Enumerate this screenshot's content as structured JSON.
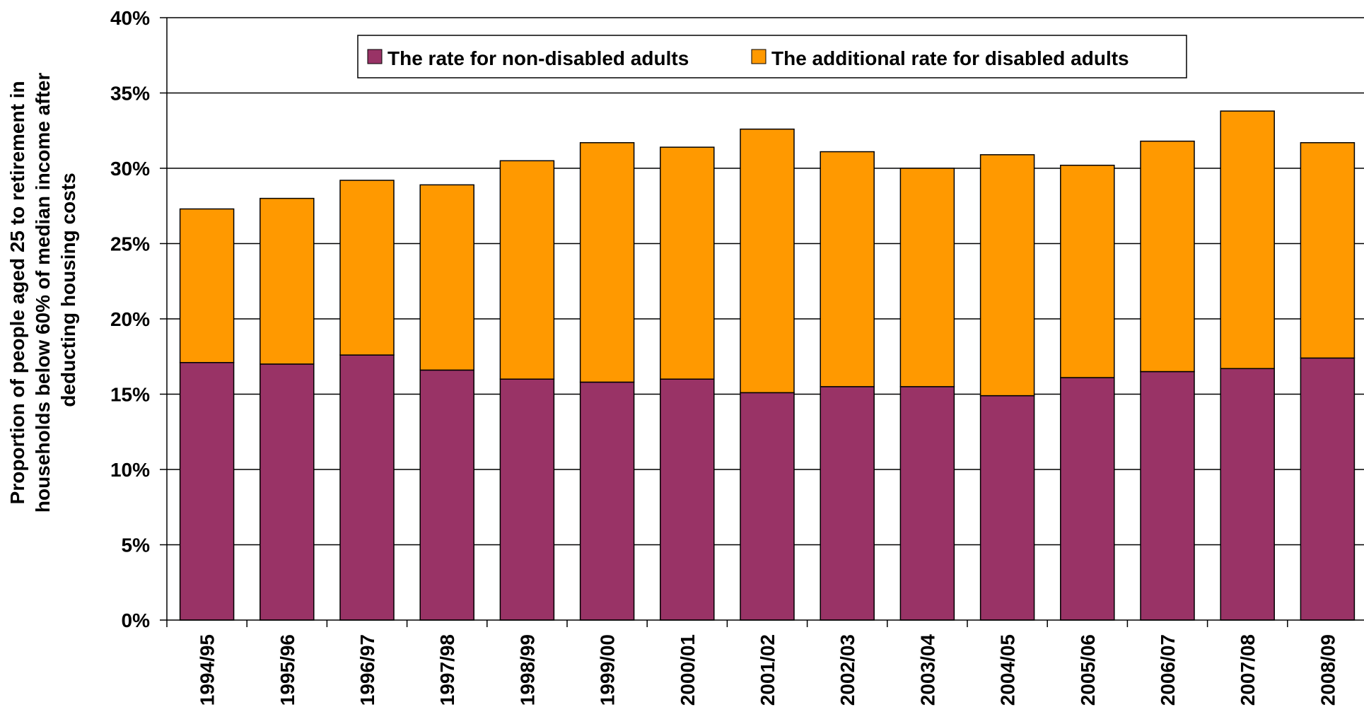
{
  "chart_data": {
    "type": "bar",
    "stacked": true,
    "ylabel": "Proportion of people aged 25 to retirement in households below 60% of median income after deducting housing costs",
    "ylabel_lines": [
      "Proportion of people aged 25 to retirement in",
      "households below 60% of median income after",
      "deducting housing costs"
    ],
    "xlabel": "",
    "categories": [
      "1994/95",
      "1995/96",
      "1996/97",
      "1997/98",
      "1998/99",
      "1999/00",
      "2000/01",
      "2001/02",
      "2002/03",
      "2003/04",
      "2004/05",
      "2005/06",
      "2006/07",
      "2007/08",
      "2008/09"
    ],
    "series": [
      {
        "name": "The rate for non-disabled adults",
        "color": "#993366",
        "values": [
          17.1,
          17.0,
          17.6,
          16.6,
          16.0,
          15.8,
          16.0,
          15.1,
          15.5,
          15.5,
          14.9,
          16.1,
          16.5,
          16.7,
          17.4
        ]
      },
      {
        "name": "The additional rate for disabled adults",
        "color": "#FF9900",
        "values": [
          10.2,
          11.0,
          11.6,
          12.3,
          14.5,
          15.9,
          15.4,
          17.5,
          15.6,
          14.5,
          16.0,
          14.1,
          15.3,
          17.1,
          14.3
        ]
      }
    ],
    "ylim": [
      0,
      40
    ],
    "yticks": [
      0,
      5,
      10,
      15,
      20,
      25,
      30,
      35,
      40
    ],
    "ytick_labels": [
      "0%",
      "5%",
      "10%",
      "15%",
      "20%",
      "25%",
      "30%",
      "35%",
      "40%"
    ],
    "grid": true,
    "legend_position": "top-center"
  }
}
